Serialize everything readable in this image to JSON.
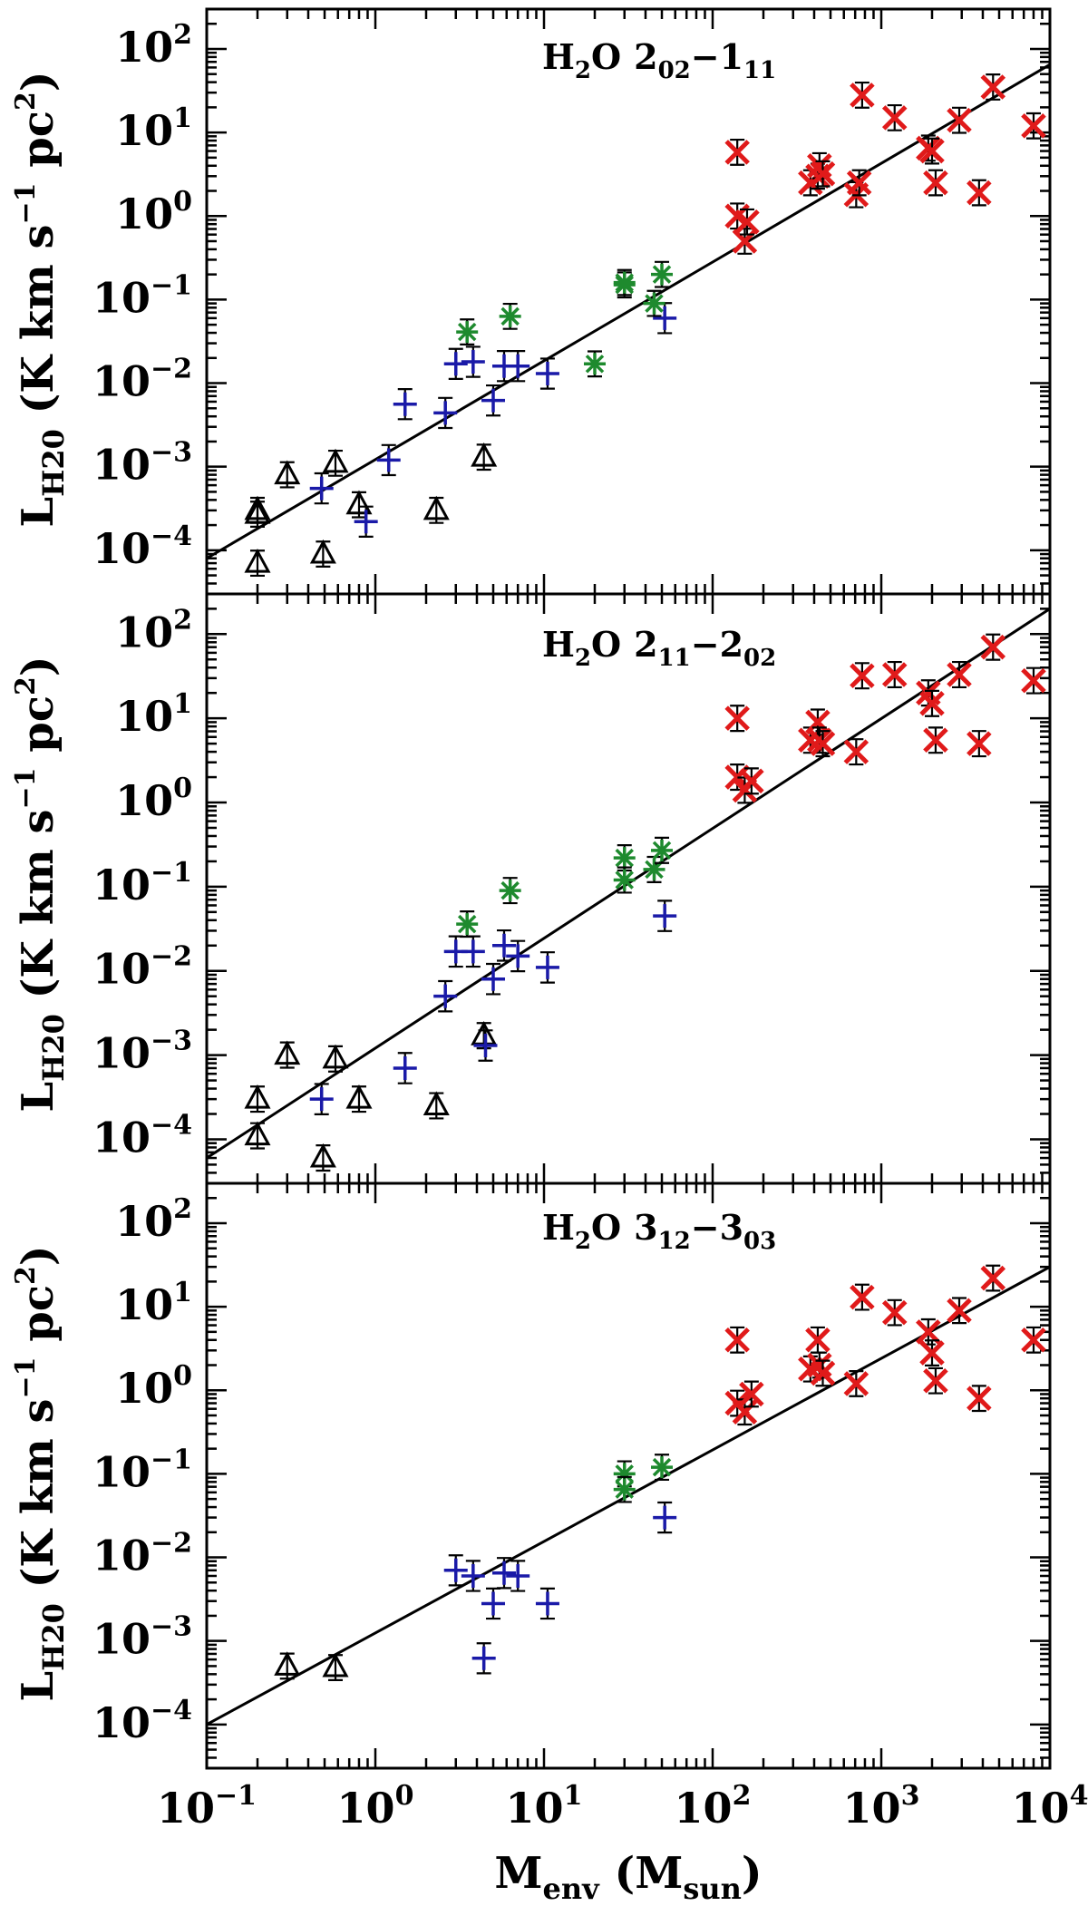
{
  "chart_data": {
    "type": "scatter",
    "x_scale": "log",
    "y_scale": "log",
    "xlim": [
      0.1,
      10000
    ],
    "ylim": [
      3e-05,
      300
    ],
    "x_tick_labels": [
      {
        "base": "10",
        "exp": "−1",
        "value": 0.1
      },
      {
        "base": "10",
        "exp": "0",
        "value": 1
      },
      {
        "base": "10",
        "exp": "1",
        "value": 10
      },
      {
        "base": "10",
        "exp": "2",
        "value": 100
      },
      {
        "base": "10",
        "exp": "3",
        "value": 1000
      },
      {
        "base": "10",
        "exp": "4",
        "value": 10000
      }
    ],
    "y_tick_labels": [
      {
        "base": "10",
        "exp": "−4",
        "value": 0.0001
      },
      {
        "base": "10",
        "exp": "−3",
        "value": 0.001
      },
      {
        "base": "10",
        "exp": "−2",
        "value": 0.01
      },
      {
        "base": "10",
        "exp": "−1",
        "value": 0.1
      },
      {
        "base": "10",
        "exp": "0",
        "value": 1
      },
      {
        "base": "10",
        "exp": "1",
        "value": 10
      },
      {
        "base": "10",
        "exp": "2",
        "value": 100
      }
    ],
    "xlabel": {
      "main": "M",
      "sub1": "env",
      "mid": " (M",
      "sub2": "sun",
      "end": ")"
    },
    "ylabel": {
      "main": "L",
      "sub": "H20",
      "rest": " (K km s",
      "exp1": "−1",
      "rest2": " pc",
      "exp2": "2",
      "end": ")"
    },
    "marker_colors": {
      "triangle": "#000000",
      "plus": "#1a1aa8",
      "asterisk": "#1e8a2e",
      "cross": "#e01a1a",
      "errorbar": "#000000",
      "fit": "#000000"
    },
    "panels": [
      {
        "title": {
          "mol": "H",
          "mol_sub": "2",
          "o": "O",
          "up": "2",
          "up_sub": "02",
          "dash": "−",
          "lo": "1",
          "lo_sub": "11"
        },
        "fit": {
          "x": [
            0.1,
            10000
          ],
          "y": [
            8e-05,
            65
          ]
        },
        "series": [
          {
            "name": "triangle",
            "points": [
              [
                0.2,
                0.0003
              ],
              [
                0.2,
                0.00027
              ],
              [
                0.2,
                7e-05
              ],
              [
                0.3,
                0.0008
              ],
              [
                0.49,
                9e-05
              ],
              [
                0.58,
                0.0011
              ],
              [
                0.8,
                0.00035
              ],
              [
                2.3,
                0.0003
              ],
              [
                4.4,
                0.0013
              ]
            ],
            "err": 0.15
          },
          {
            "name": "plus",
            "points": [
              [
                0.48,
                0.00055
              ],
              [
                0.88,
                0.00022
              ],
              [
                1.2,
                0.0012
              ],
              [
                1.5,
                0.0056
              ],
              [
                2.6,
                0.0044
              ],
              [
                3.0,
                0.017
              ],
              [
                3.8,
                0.018
              ],
              [
                5.0,
                0.0062
              ],
              [
                5.8,
                0.016
              ],
              [
                7.0,
                0.016
              ],
              [
                10.5,
                0.013
              ],
              [
                52,
                0.06
              ]
            ],
            "err": 0.18
          },
          {
            "name": "asterisk",
            "points": [
              [
                3.5,
                0.041
              ],
              [
                6.3,
                0.063
              ],
              [
                20,
                0.017
              ],
              [
                30,
                0.15
              ],
              [
                30,
                0.16
              ],
              [
                45,
                0.09
              ],
              [
                50,
                0.2
              ]
            ],
            "err": 0.15
          },
          {
            "name": "cross",
            "points": [
              [
                140,
                5.8
              ],
              [
                140,
                1.0
              ],
              [
                155,
                0.5
              ],
              [
                160,
                0.85
              ],
              [
                380,
                2.5
              ],
              [
                420,
                3.0
              ],
              [
                430,
                4.0
              ],
              [
                450,
                3.2
              ],
              [
                710,
                1.8
              ],
              [
                740,
                2.5
              ],
              [
                770,
                28
              ],
              [
                1200,
                15
              ],
              [
                1900,
                6.5
              ],
              [
                2000,
                6.0
              ],
              [
                2100,
                2.5
              ],
              [
                2900,
                14
              ],
              [
                3800,
                1.9
              ],
              [
                4600,
                35
              ],
              [
                8000,
                12
              ]
            ],
            "err": 0.15
          }
        ]
      },
      {
        "title": {
          "mol": "H",
          "mol_sub": "2",
          "o": "O",
          "up": "2",
          "up_sub": "11",
          "dash": "−",
          "lo": "2",
          "lo_sub": "02"
        },
        "fit": {
          "x": [
            0.1,
            10000
          ],
          "y": [
            6e-05,
            200
          ]
        },
        "series": [
          {
            "name": "triangle",
            "points": [
              [
                0.2,
                0.0003
              ],
              [
                0.2,
                0.00011
              ],
              [
                0.3,
                0.001
              ],
              [
                0.49,
                6e-05
              ],
              [
                0.58,
                0.0009
              ],
              [
                0.8,
                0.0003
              ],
              [
                2.3,
                0.00025
              ],
              [
                4.4,
                0.0017
              ]
            ],
            "err": 0.15
          },
          {
            "name": "plus",
            "points": [
              [
                0.48,
                0.0003
              ],
              [
                1.5,
                0.0007
              ],
              [
                2.6,
                0.005
              ],
              [
                3.0,
                0.017
              ],
              [
                3.8,
                0.017
              ],
              [
                4.5,
                0.0013
              ],
              [
                5.0,
                0.008
              ],
              [
                5.8,
                0.02
              ],
              [
                7.0,
                0.015
              ],
              [
                10.5,
                0.011
              ],
              [
                52,
                0.045
              ]
            ],
            "err": 0.18
          },
          {
            "name": "asterisk",
            "points": [
              [
                3.5,
                0.036
              ],
              [
                6.3,
                0.09
              ],
              [
                30,
                0.22
              ],
              [
                30,
                0.12
              ],
              [
                45,
                0.16
              ],
              [
                50,
                0.27
              ]
            ],
            "err": 0.15
          },
          {
            "name": "cross",
            "points": [
              [
                140,
                10
              ],
              [
                140,
                2.0
              ],
              [
                155,
                1.4
              ],
              [
                170,
                1.8
              ],
              [
                380,
                5.5
              ],
              [
                420,
                9.0
              ],
              [
                430,
                5.5
              ],
              [
                450,
                5.0
              ],
              [
                710,
                4.0
              ],
              [
                770,
                32
              ],
              [
                1200,
                33
              ],
              [
                1900,
                20
              ],
              [
                2000,
                15
              ],
              [
                2100,
                5.5
              ],
              [
                2900,
                33
              ],
              [
                3800,
                5.0
              ],
              [
                4600,
                70
              ],
              [
                8000,
                28
              ]
            ],
            "err": 0.15
          }
        ]
      },
      {
        "title": {
          "mol": "H",
          "mol_sub": "2",
          "o": "O",
          "up": "3",
          "up_sub": "12",
          "dash": "−",
          "lo": "3",
          "lo_sub": "03"
        },
        "fit": {
          "x": [
            0.1,
            10000
          ],
          "y": [
            0.0001,
            30
          ]
        },
        "series": [
          {
            "name": "triangle",
            "points": [
              [
                0.3,
                0.0005
              ],
              [
                0.58,
                0.00048
              ]
            ],
            "err": 0.15
          },
          {
            "name": "plus",
            "points": [
              [
                3.0,
                0.007
              ],
              [
                3.8,
                0.006
              ],
              [
                4.4,
                0.00062
              ],
              [
                5.0,
                0.0028
              ],
              [
                5.8,
                0.0065
              ],
              [
                7.0,
                0.006
              ],
              [
                10.5,
                0.0028
              ],
              [
                52,
                0.03
              ]
            ],
            "err": 0.18
          },
          {
            "name": "asterisk",
            "points": [
              [
                30,
                0.1
              ],
              [
                30,
                0.065
              ],
              [
                50,
                0.12
              ]
            ],
            "err": 0.15
          },
          {
            "name": "cross",
            "points": [
              [
                140,
                4.0
              ],
              [
                140,
                0.7
              ],
              [
                155,
                0.55
              ],
              [
                170,
                0.9
              ],
              [
                380,
                1.8
              ],
              [
                420,
                4.0
              ],
              [
                430,
                2.0
              ],
              [
                450,
                1.6
              ],
              [
                710,
                1.2
              ],
              [
                770,
                13
              ],
              [
                1200,
                8.5
              ],
              [
                1900,
                5.0
              ],
              [
                2000,
                2.8
              ],
              [
                2100,
                1.3
              ],
              [
                2900,
                9.0
              ],
              [
                3800,
                0.8
              ],
              [
                4600,
                22
              ],
              [
                8000,
                4.0
              ]
            ],
            "err": 0.15
          }
        ]
      }
    ]
  }
}
